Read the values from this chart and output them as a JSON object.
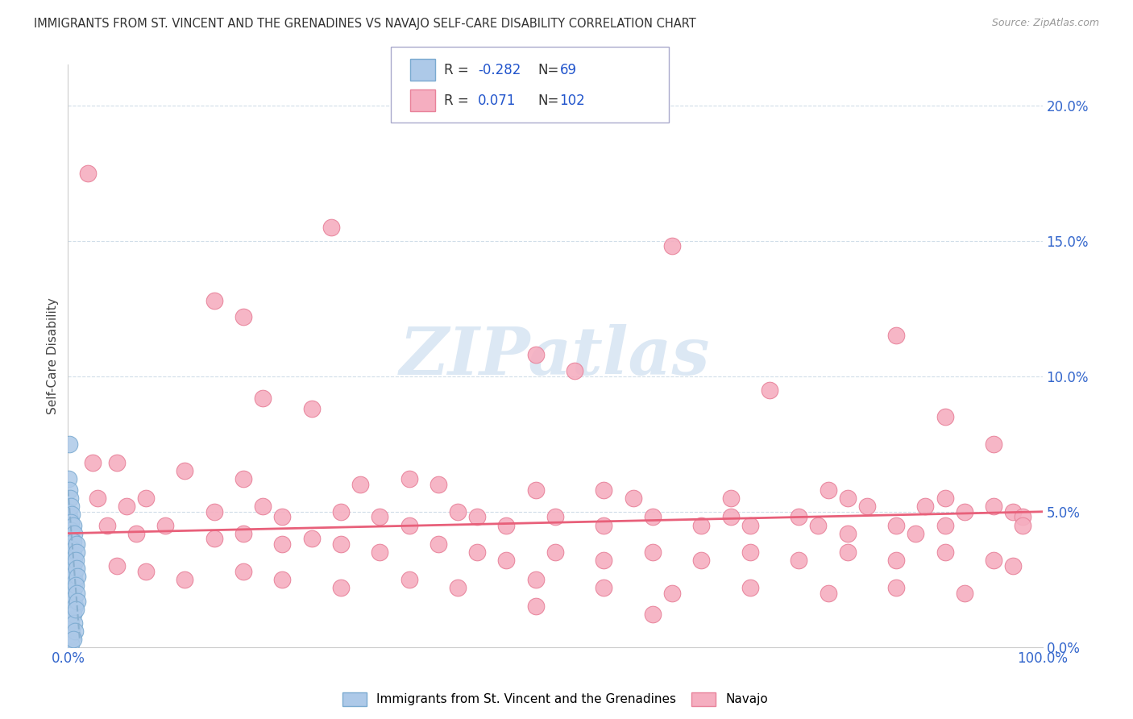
{
  "title": "IMMIGRANTS FROM ST. VINCENT AND THE GRENADINES VS NAVAJO SELF-CARE DISABILITY CORRELATION CHART",
  "source": "Source: ZipAtlas.com",
  "ylabel": "Self-Care Disability",
  "ytick_vals": [
    0.0,
    5.0,
    10.0,
    15.0,
    20.0
  ],
  "xlim": [
    0.0,
    100.0
  ],
  "ylim": [
    0.0,
    21.5
  ],
  "blue_color": "#adc9e8",
  "pink_color": "#f5aec0",
  "blue_edge_color": "#7aaad0",
  "pink_edge_color": "#e8829a",
  "pink_line_color": "#e8607a",
  "blue_line_color": "#8ab0d0",
  "watermark_color": "#dce8f4",
  "tick_color": "#3366cc",
  "grid_color": "#d0dde8",
  "blue_scatter": [
    [
      0.15,
      7.5
    ],
    [
      0.08,
      6.2
    ],
    [
      0.12,
      5.8
    ],
    [
      0.18,
      5.5
    ],
    [
      0.05,
      5.0
    ],
    [
      0.1,
      4.8
    ],
    [
      0.22,
      4.5
    ],
    [
      0.07,
      4.2
    ],
    [
      0.15,
      4.0
    ],
    [
      0.2,
      3.8
    ],
    [
      0.06,
      3.5
    ],
    [
      0.12,
      3.3
    ],
    [
      0.18,
      3.0
    ],
    [
      0.08,
      2.8
    ],
    [
      0.14,
      2.6
    ],
    [
      0.22,
      2.4
    ],
    [
      0.05,
      2.2
    ],
    [
      0.1,
      2.0
    ],
    [
      0.18,
      1.8
    ],
    [
      0.07,
      1.6
    ],
    [
      0.13,
      1.4
    ],
    [
      0.2,
      1.2
    ],
    [
      0.06,
      1.0
    ],
    [
      0.11,
      0.8
    ],
    [
      0.17,
      0.6
    ],
    [
      0.04,
      0.4
    ],
    [
      0.09,
      0.2
    ],
    [
      0.3,
      5.2
    ],
    [
      0.35,
      4.9
    ],
    [
      0.28,
      4.6
    ],
    [
      0.32,
      4.3
    ],
    [
      0.38,
      4.0
    ],
    [
      0.25,
      3.7
    ],
    [
      0.33,
      3.4
    ],
    [
      0.4,
      3.1
    ],
    [
      0.27,
      2.8
    ],
    [
      0.34,
      2.5
    ],
    [
      0.42,
      2.2
    ],
    [
      0.29,
      1.9
    ],
    [
      0.36,
      1.6
    ],
    [
      0.44,
      1.3
    ],
    [
      0.31,
      1.0
    ],
    [
      0.37,
      0.7
    ],
    [
      0.45,
      0.4
    ],
    [
      0.33,
      0.1
    ],
    [
      0.55,
      4.5
    ],
    [
      0.6,
      4.2
    ],
    [
      0.52,
      3.9
    ],
    [
      0.58,
      3.6
    ],
    [
      0.65,
      3.3
    ],
    [
      0.53,
      3.0
    ],
    [
      0.61,
      2.7
    ],
    [
      0.68,
      2.4
    ],
    [
      0.55,
      2.1
    ],
    [
      0.63,
      1.8
    ],
    [
      0.7,
      1.5
    ],
    [
      0.57,
      1.2
    ],
    [
      0.64,
      0.9
    ],
    [
      0.72,
      0.6
    ],
    [
      0.59,
      0.3
    ],
    [
      0.85,
      3.8
    ],
    [
      0.9,
      3.5
    ],
    [
      0.78,
      3.2
    ],
    [
      0.86,
      2.9
    ],
    [
      0.93,
      2.6
    ],
    [
      0.8,
      2.3
    ],
    [
      0.88,
      2.0
    ],
    [
      0.95,
      1.7
    ],
    [
      0.82,
      1.4
    ]
  ],
  "pink_scatter": [
    [
      2.0,
      17.5
    ],
    [
      27.0,
      15.5
    ],
    [
      62.0,
      14.8
    ],
    [
      15.0,
      12.8
    ],
    [
      18.0,
      12.2
    ],
    [
      85.0,
      11.5
    ],
    [
      48.0,
      10.8
    ],
    [
      52.0,
      10.2
    ],
    [
      72.0,
      9.5
    ],
    [
      20.0,
      9.2
    ],
    [
      25.0,
      8.8
    ],
    [
      90.0,
      8.5
    ],
    [
      95.0,
      7.5
    ],
    [
      2.5,
      6.8
    ],
    [
      5.0,
      6.8
    ],
    [
      12.0,
      6.5
    ],
    [
      18.0,
      6.2
    ],
    [
      30.0,
      6.0
    ],
    [
      35.0,
      6.2
    ],
    [
      38.0,
      6.0
    ],
    [
      48.0,
      5.8
    ],
    [
      55.0,
      5.8
    ],
    [
      58.0,
      5.5
    ],
    [
      68.0,
      5.5
    ],
    [
      78.0,
      5.8
    ],
    [
      80.0,
      5.5
    ],
    [
      82.0,
      5.2
    ],
    [
      88.0,
      5.2
    ],
    [
      90.0,
      5.5
    ],
    [
      92.0,
      5.0
    ],
    [
      95.0,
      5.2
    ],
    [
      97.0,
      5.0
    ],
    [
      98.0,
      4.8
    ],
    [
      3.0,
      5.5
    ],
    [
      6.0,
      5.2
    ],
    [
      8.0,
      5.5
    ],
    [
      15.0,
      5.0
    ],
    [
      20.0,
      5.2
    ],
    [
      22.0,
      4.8
    ],
    [
      28.0,
      5.0
    ],
    [
      32.0,
      4.8
    ],
    [
      35.0,
      4.5
    ],
    [
      40.0,
      5.0
    ],
    [
      42.0,
      4.8
    ],
    [
      45.0,
      4.5
    ],
    [
      50.0,
      4.8
    ],
    [
      55.0,
      4.5
    ],
    [
      60.0,
      4.8
    ],
    [
      65.0,
      4.5
    ],
    [
      68.0,
      4.8
    ],
    [
      70.0,
      4.5
    ],
    [
      75.0,
      4.8
    ],
    [
      77.0,
      4.5
    ],
    [
      80.0,
      4.2
    ],
    [
      85.0,
      4.5
    ],
    [
      87.0,
      4.2
    ],
    [
      90.0,
      4.5
    ],
    [
      4.0,
      4.5
    ],
    [
      7.0,
      4.2
    ],
    [
      10.0,
      4.5
    ],
    [
      15.0,
      4.0
    ],
    [
      18.0,
      4.2
    ],
    [
      22.0,
      3.8
    ],
    [
      25.0,
      4.0
    ],
    [
      28.0,
      3.8
    ],
    [
      32.0,
      3.5
    ],
    [
      38.0,
      3.8
    ],
    [
      42.0,
      3.5
    ],
    [
      45.0,
      3.2
    ],
    [
      50.0,
      3.5
    ],
    [
      55.0,
      3.2
    ],
    [
      60.0,
      3.5
    ],
    [
      65.0,
      3.2
    ],
    [
      70.0,
      3.5
    ],
    [
      75.0,
      3.2
    ],
    [
      80.0,
      3.5
    ],
    [
      85.0,
      3.2
    ],
    [
      90.0,
      3.5
    ],
    [
      95.0,
      3.2
    ],
    [
      97.0,
      3.0
    ],
    [
      5.0,
      3.0
    ],
    [
      8.0,
      2.8
    ],
    [
      12.0,
      2.5
    ],
    [
      18.0,
      2.8
    ],
    [
      22.0,
      2.5
    ],
    [
      28.0,
      2.2
    ],
    [
      35.0,
      2.5
    ],
    [
      40.0,
      2.2
    ],
    [
      48.0,
      2.5
    ],
    [
      55.0,
      2.2
    ],
    [
      62.0,
      2.0
    ],
    [
      70.0,
      2.2
    ],
    [
      78.0,
      2.0
    ],
    [
      85.0,
      2.2
    ],
    [
      92.0,
      2.0
    ],
    [
      48.0,
      1.5
    ],
    [
      60.0,
      1.2
    ],
    [
      98.0,
      4.5
    ]
  ],
  "pink_trend_x": [
    0.0,
    100.0
  ],
  "pink_trend_y": [
    4.2,
    5.0
  ],
  "blue_trend_x": [
    0.0,
    1.2
  ],
  "blue_trend_y": [
    5.8,
    0.3
  ]
}
